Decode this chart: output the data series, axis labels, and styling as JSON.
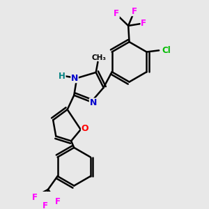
{
  "background_color": "#e8e8e8",
  "atoms": {
    "colors": {
      "C": "#000000",
      "N": "#0000cd",
      "O": "#ff0000",
      "F": "#ff00ff",
      "Cl": "#00bb00",
      "H": "#008080"
    }
  },
  "bond_color": "#000000",
  "bond_width": 1.8,
  "figsize": [
    3.0,
    3.0
  ],
  "dpi": 100,
  "xlim": [
    0,
    10
  ],
  "ylim": [
    0,
    10
  ]
}
